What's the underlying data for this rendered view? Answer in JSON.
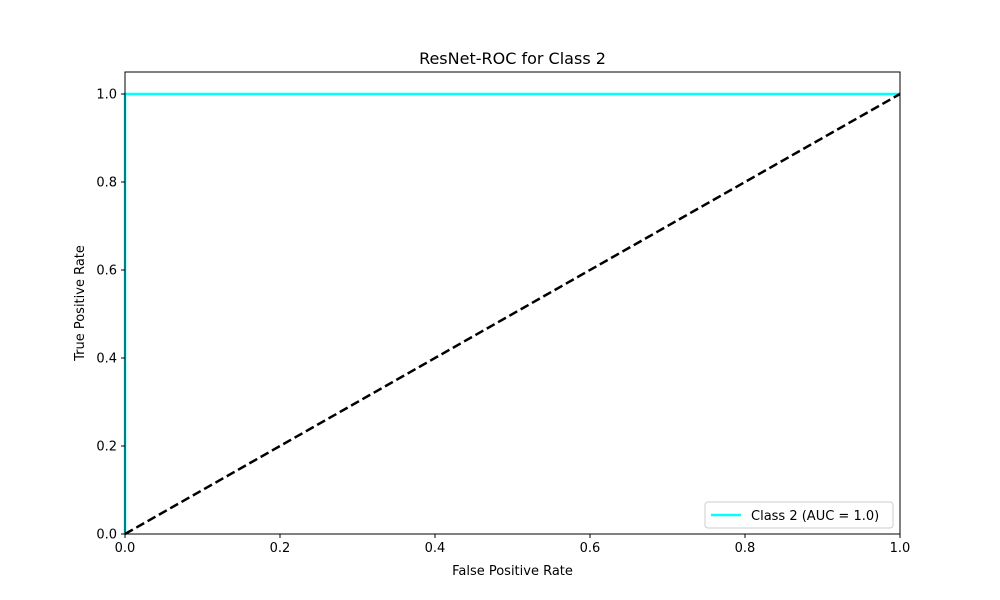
{
  "chart_data": {
    "type": "line",
    "title": "ResNet-ROC for Class 2",
    "xlabel": "False Positive Rate",
    "ylabel": "True Positive Rate",
    "xlim": [
      0.0,
      1.0
    ],
    "ylim": [
      0.0,
      1.05
    ],
    "xticks": [
      0.0,
      0.2,
      0.4,
      0.6,
      0.8,
      1.0
    ],
    "yticks": [
      0.0,
      0.2,
      0.4,
      0.6,
      0.8,
      1.0
    ],
    "xtick_labels": [
      "0.0",
      "0.2",
      "0.4",
      "0.6",
      "0.8",
      "1.0"
    ],
    "ytick_labels": [
      "0.0",
      "0.2",
      "0.4",
      "0.6",
      "0.8",
      "1.0"
    ],
    "grid": false,
    "legend_position": "lower-right",
    "series": [
      {
        "name": "Class 2 (AUC = 1.0)",
        "color": "#00ffff",
        "style": "solid",
        "x": [
          0.0,
          0.0,
          1.0
        ],
        "y": [
          0.0,
          1.0,
          1.0
        ]
      },
      {
        "color": "#000000",
        "style": "dashed",
        "x": [
          0.0,
          1.0
        ],
        "y": [
          0.0,
          1.0
        ]
      }
    ]
  }
}
